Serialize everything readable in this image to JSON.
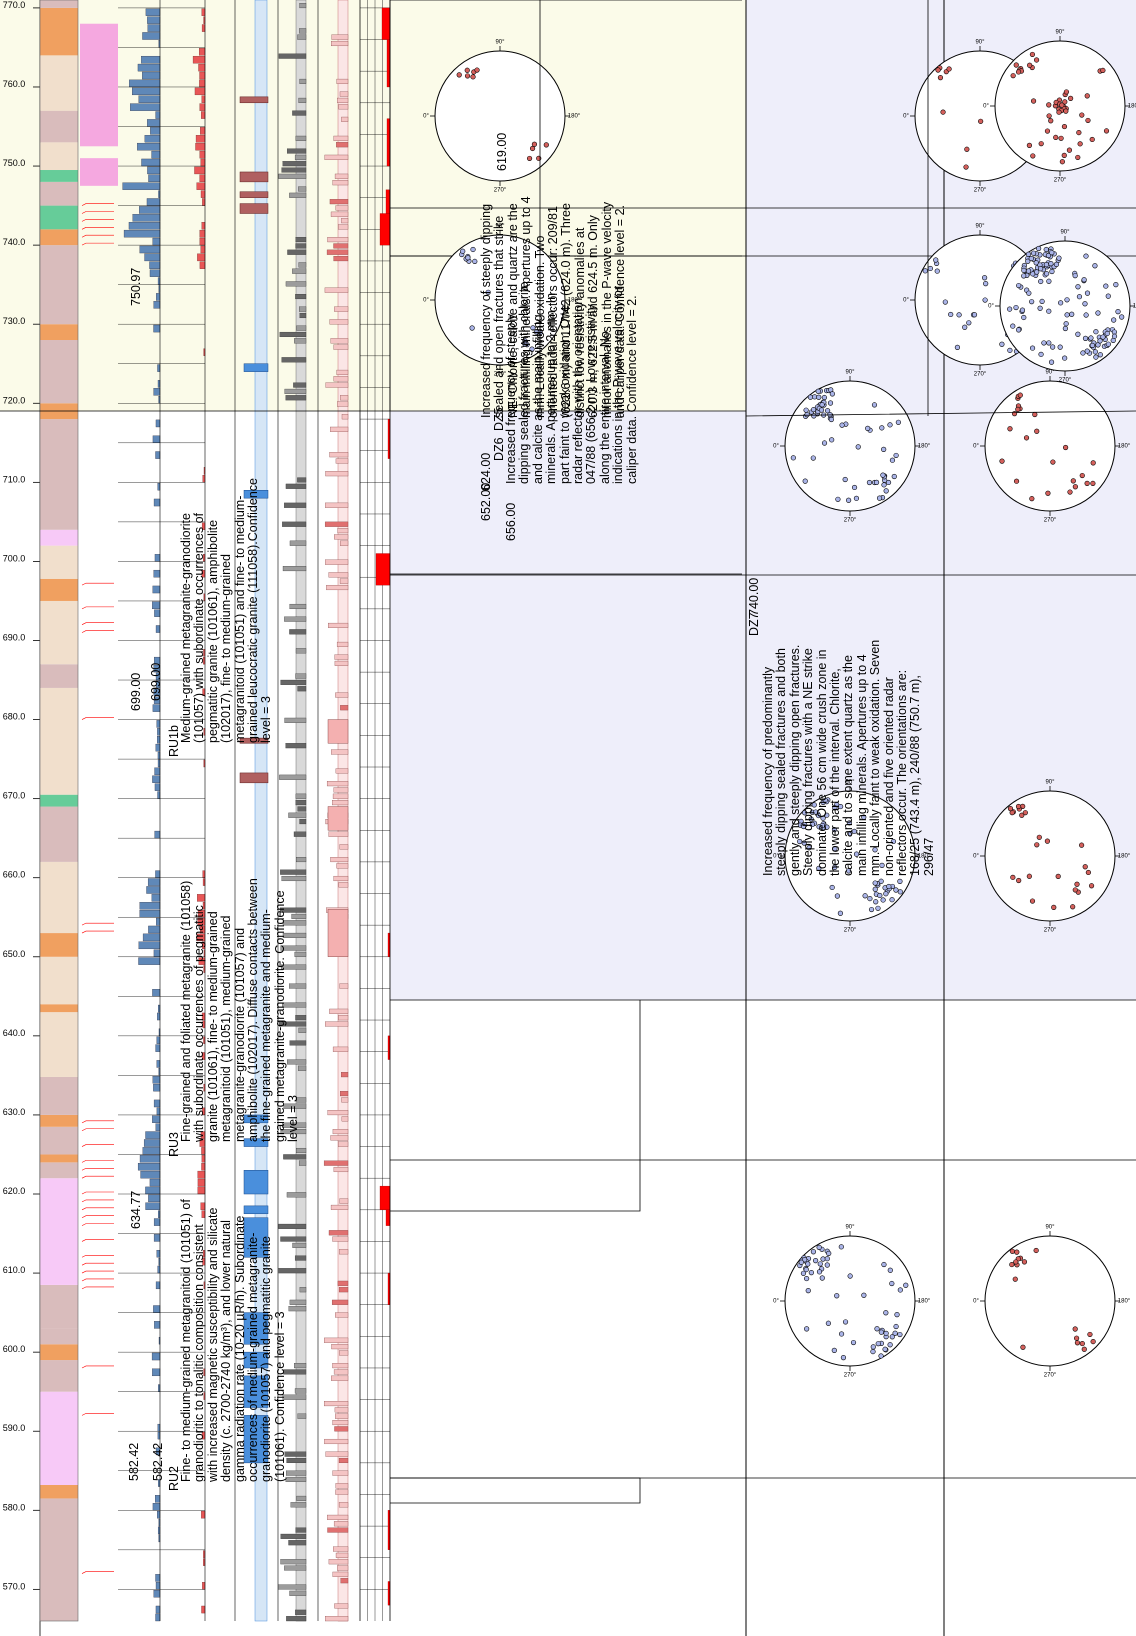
{
  "depth_axis": {
    "ticks": [
      "570.0",
      "580.0",
      "590.0",
      "600.0",
      "610.0",
      "620.0",
      "630.0",
      "640.0",
      "650.0",
      "660.0",
      "670.0",
      "680.0",
      "690.0",
      "700.0",
      "710.0",
      "720.0",
      "730.0",
      "740.0",
      "750.0",
      "760.0",
      "770.0"
    ],
    "range": [
      566,
      771
    ]
  },
  "rock_units": [
    {
      "id": "RU2",
      "top": "582.42",
      "bottom": "634.77",
      "top_repeat": "582.42",
      "text": "Fine- to medium-grained metagranitoid (101051) of granodioritic to tonalitic composition consistent with increased magnetic susceptibility and silicate density (c. 2700-2740 kg/m³), and lower natural gamma radiation rate (10-20 µR/h). Subordinate occurrences of medium-grained metagranite-granodiorite (101057) and pegmatitic granite (101061). Confidence level = 3"
    },
    {
      "id": "RU3",
      "top": "634.77",
      "bottom": "699.00",
      "text": "Fine-grained and foliated metagranite (101058) with subordinate occurrences of pegmatitic granite (101061), fine- to medium-grained metagranitoid (101051), medium-grained metagranite-granodiorite (101057) and amphibolite (102017). Diffuse contacts between the fine-grained metagranite and medium-grained metagranite-granodiorite. Confidence level = 3"
    },
    {
      "id": "RU1b",
      "top": "699.00",
      "bottom": "750.97",
      "text": "Medium-grained metagranite-granodiorite (101057) with subordinate occurrences of pegmatitic granite (101061), amphibolite (102017), fine- to medium-grained metagranitoid (101051) and fine- to medium-grained leucocratic granite (111058).Confidence level = 3"
    }
  ],
  "deformation_zones": [
    {
      "id": "DZ5",
      "top": "619.00",
      "bottom": "624.00",
      "text": "Increased frequency of steeply dipping sealed and open fractures that strike NE. Chlorite, calcite and quartz are the main infilling minerals. Apertures up to 4 mm. Locally weak oxidation. Two oriented radar reflectors occur: 209/81 (622.6 m) and 117/42 (624.0 m). Three distinct low resistivity anomalies at 620.3 m, 622.5 m and 624.5 m. Only minor anomalies in the P-wave velocity and caliper data. Confidence level = 2."
    },
    {
      "id": "DZ6",
      "top": "652.00",
      "bottom": "656.00",
      "text": "Increased frequency of steeply dipping sealed fractures with chlorite and calcite as the main infilling minerals. Apertures up to 2 mm. In part faint to weak oxidation. One radar reflector with the orientation 047/88 (656.2 m). Low resistivity along the entire interval. No indications in the P-wave velocity or caliper data. Confidence level = 2."
    },
    {
      "id": "DZ7",
      "top": "740.00",
      "bottom": "",
      "text": "Increased frequency of predominantly steeply dipping sealed fractures and both gently and steeply dipping open fractures. Steeply dipping fractures with a NE strike dominate. One 56 cm wide crush zone in the lower part of the interval. Chlorite, calcite and to some extent quartz as the main infilling minerals. Apertures up to 4 mm. Locally faint to weak oxidation. Seven non-oriented and five oriented radar reflectors occur. The orientations are: 168/25 (743.4 m), 240/88 (750.7 m), 296/47"
    }
  ],
  "stereonet_labels": {
    "north": "0°",
    "east": "90°",
    "south": "180°",
    "west": "270°"
  },
  "colors": {
    "rock_panel": "#eeeefa",
    "dz_panel": "#fbfbe9",
    "sealed": "#aab4e8",
    "open": "#d4605c",
    "plag": "#d9bcbc",
    "orange": "#f0a060",
    "pink": "#f7c9f7",
    "beige": "#f1dfcc",
    "green": "#66cc99",
    "bar_blue": "#5f88b8",
    "bar_red": "#e85656",
    "blue_log": "#4a8fdc",
    "gray_log": "#9c9c9c",
    "pink_log": "#f4c4c4",
    "red": "#ff0000"
  }
}
